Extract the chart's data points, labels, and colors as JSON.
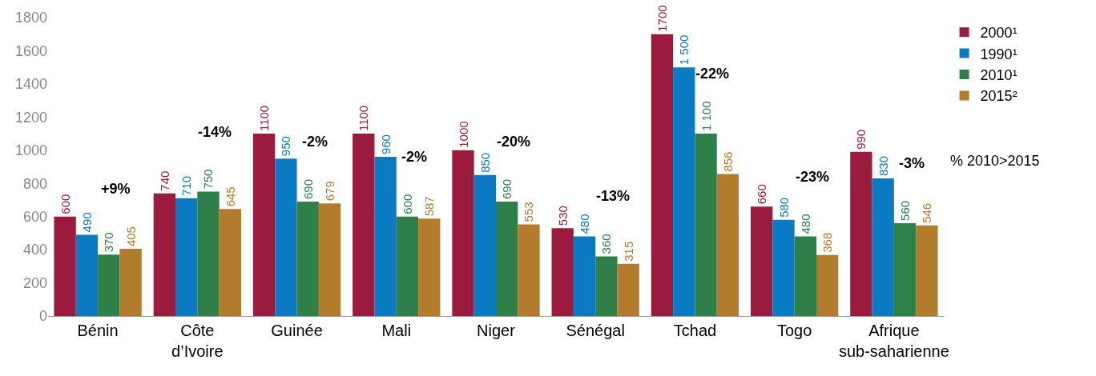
{
  "chart_data": {
    "type": "bar",
    "categories": [
      "Bénin",
      "Côte d’Ivoire",
      "Guinée",
      "Mali",
      "Niger",
      "Sénégal",
      "Tchad",
      "Togo",
      "Afrique sub-saharienne"
    ],
    "series": [
      {
        "name": "2000¹",
        "color": "#9b1b3e",
        "values": [
          600,
          740,
          1100,
          1100,
          1000,
          530,
          1700,
          660,
          990
        ],
        "value_labels": [
          "600",
          "740",
          "1100",
          "1100",
          "1000",
          "530",
          "1700",
          "660",
          "990"
        ]
      },
      {
        "name": "1990¹",
        "color": "#0a7bc2",
        "values": [
          490,
          710,
          950,
          960,
          850,
          480,
          1500,
          580,
          830
        ],
        "value_labels": [
          "490",
          "710",
          "950",
          "960",
          "850",
          "480",
          "1 500",
          "580",
          "830"
        ]
      },
      {
        "name": "2010¹",
        "color": "#2e8048",
        "values": [
          370,
          750,
          690,
          600,
          690,
          360,
          1100,
          480,
          560
        ],
        "value_labels": [
          "370",
          "750",
          "690",
          "600",
          "690",
          "360",
          "1 100",
          "480",
          "560"
        ]
      },
      {
        "name": "2015²",
        "color": "#b27c2c",
        "values": [
          405,
          645,
          679,
          587,
          553,
          315,
          856,
          368,
          546
        ],
        "value_labels": [
          "405",
          "645",
          "679",
          "587",
          "553",
          "315",
          "856",
          "368",
          "546"
        ]
      }
    ],
    "ylim": [
      0,
      1800
    ],
    "yticks": [
      0,
      200,
      400,
      600,
      800,
      1000,
      1200,
      1400,
      1600,
      1800
    ],
    "legend": "top right",
    "annotations": [
      "+9%",
      "-14%",
      "-2%",
      "-2%",
      "-20%",
      "-13%",
      "-22%",
      "-23%",
      "-3%",
      "% 2010>2015"
    ]
  }
}
